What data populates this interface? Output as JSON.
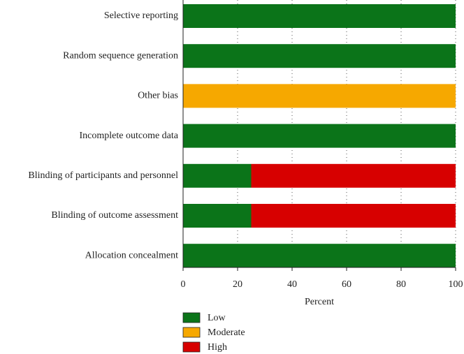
{
  "chart_data": {
    "type": "stacked-barh",
    "categories": [
      "Selective reporting",
      "Random sequence generation",
      "Other bias",
      "Incomplete outcome data",
      "Blinding of participants and personnel",
      "Blinding of outcome assessment",
      "Allocation concealment"
    ],
    "series": [
      {
        "name": "Low",
        "color": "#0b7419",
        "values": [
          100,
          100,
          0,
          100,
          25,
          25,
          100
        ]
      },
      {
        "name": "Moderate",
        "color": "#f6a800",
        "values": [
          0,
          0,
          100,
          0,
          0,
          0,
          0
        ]
      },
      {
        "name": "High",
        "color": "#d70000",
        "values": [
          0,
          0,
          0,
          0,
          75,
          75,
          0
        ]
      }
    ],
    "x_label": "Percent",
    "xlim": [
      0,
      100
    ],
    "xticks": [
      0,
      20,
      40,
      60,
      80,
      100
    ],
    "grid": true
  }
}
